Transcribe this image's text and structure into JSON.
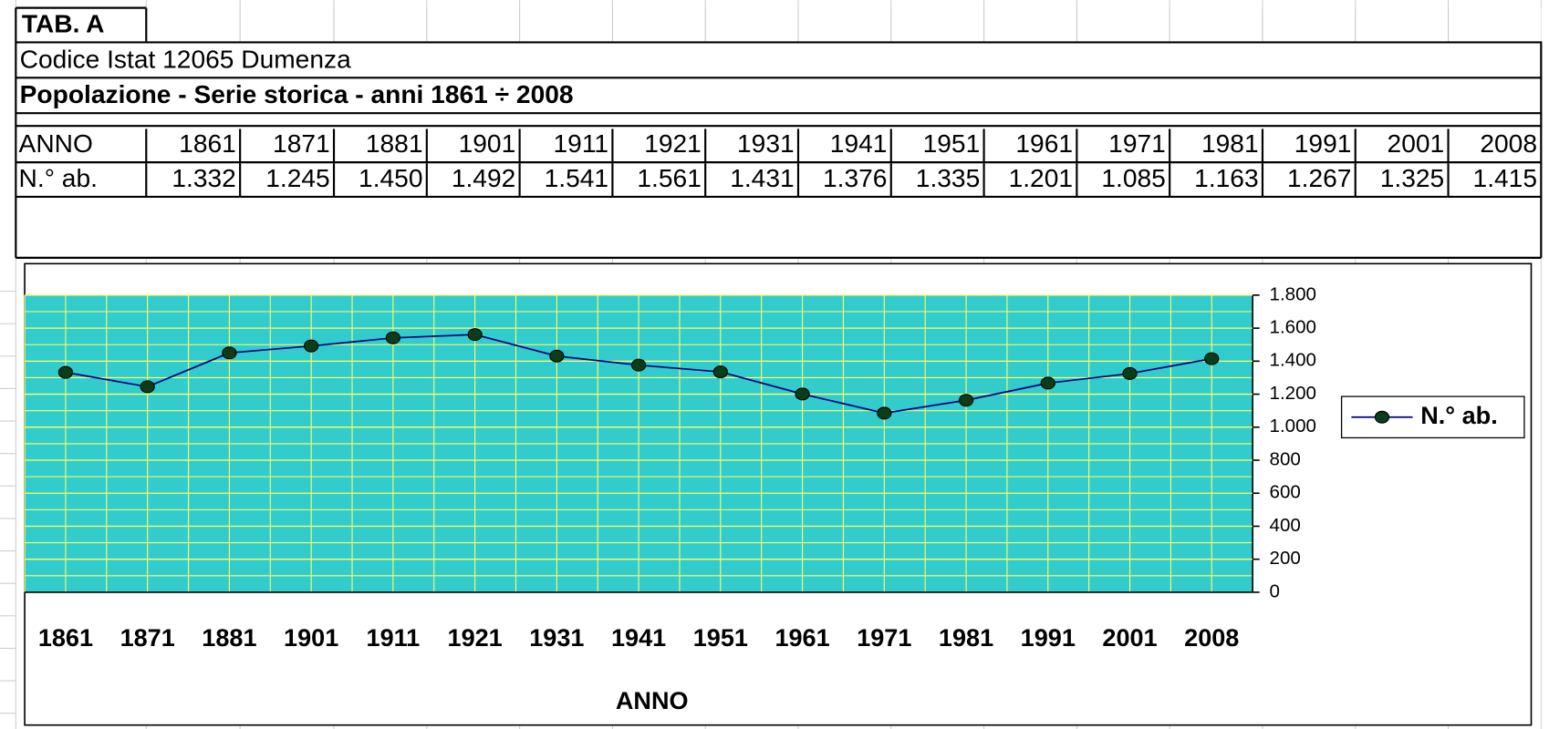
{
  "sheet": {
    "tab": "TAB. A",
    "code": "Codice Istat 12065 Dumenza",
    "subtitle": "Popolazione - Serie storica  - anni 1861 ÷ 2008"
  },
  "table": {
    "header": [
      "ANNO",
      "1861",
      "1871",
      "1881",
      "1901",
      "1911",
      "1921",
      "1931",
      "1941",
      "1951",
      "1961",
      "1971",
      "1981",
      "1991",
      "2001",
      "2008"
    ],
    "rows": [
      [
        "N.° ab.",
        "1.332",
        "1.245",
        "1.450",
        "1.492",
        "1.541",
        "1.561",
        "1.431",
        "1.376",
        "1.335",
        "1.201",
        "1.085",
        "1.163",
        "1.267",
        "1.325",
        "1.415"
      ]
    ]
  },
  "chart_data": {
    "type": "line",
    "xlabel": "ANNO",
    "categories": [
      "1861",
      "1871",
      "1881",
      "1901",
      "1911",
      "1921",
      "1931",
      "1941",
      "1951",
      "1961",
      "1971",
      "1981",
      "1991",
      "2001",
      "2008"
    ],
    "series": [
      {
        "name": "N.° ab.",
        "color": "#000080",
        "marker_color": "#0b3d1a",
        "values": [
          1332,
          1245,
          1450,
          1492,
          1541,
          1561,
          1431,
          1376,
          1335,
          1201,
          1085,
          1163,
          1267,
          1325,
          1415
        ]
      }
    ],
    "ylim": [
      0,
      1800
    ],
    "yticks": [
      0,
      200,
      400,
      600,
      800,
      {
        "value": 1000,
        "label": "1.000"
      },
      {
        "value": 1200,
        "label": "1.200"
      },
      {
        "value": 1400,
        "label": "1.400"
      },
      {
        "value": 1600,
        "label": "1.600"
      },
      {
        "value": 1800,
        "label": "1.800"
      }
    ],
    "y_axis_side": "right",
    "grid": true,
    "plot_background": "#33cccc",
    "grid_color": "#ffff66",
    "legend": "right"
  }
}
